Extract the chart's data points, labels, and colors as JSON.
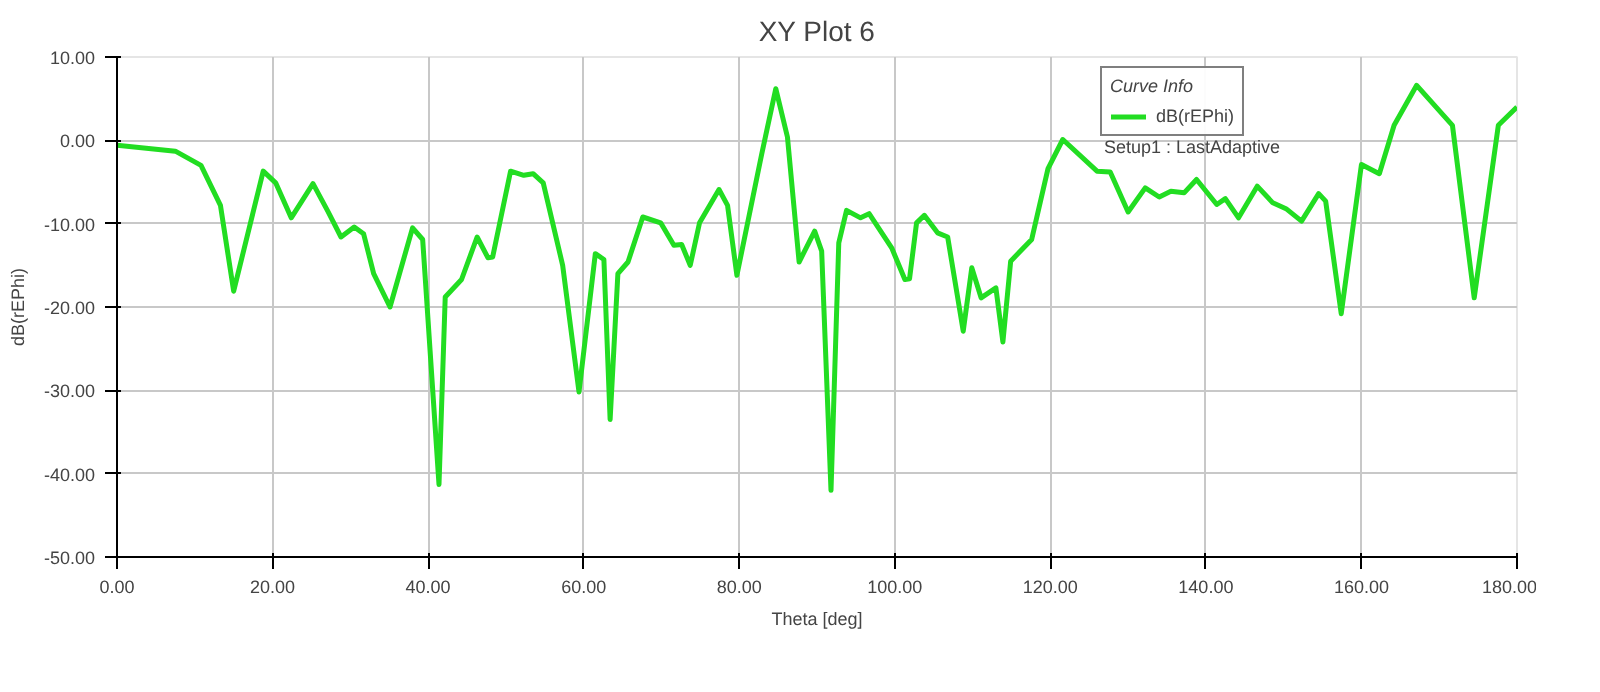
{
  "chart_data": {
    "type": "line",
    "title": "XY Plot 6",
    "xlabel": "Theta [deg]",
    "ylabel": "dB(rEPhi)",
    "legend_title": "Curve Info",
    "annotations": [
      "Setup1 : LastAdaptive"
    ],
    "x": [
      0,
      7.5,
      10.8,
      13.3,
      15.0,
      18.8,
      20.4,
      22.4,
      25.2,
      27.1,
      28.8,
      30.5,
      31.7,
      33.0,
      35.1,
      38.0,
      39.3,
      41.4,
      42.2,
      44.3,
      46.3,
      47.7,
      48.3,
      50.6,
      52.3,
      53.5,
      54.8,
      57.3,
      59.4,
      61.5,
      62.6,
      63.4,
      64.4,
      65.7,
      67.6,
      69.9,
      71.6,
      72.6,
      73.7,
      74.9,
      77.4,
      78.5,
      79.7,
      82.9,
      84.7,
      86.2,
      87.7,
      89.7,
      90.6,
      91.8,
      92.8,
      93.8,
      95.6,
      96.7,
      99.6,
      101.3,
      101.9,
      102.8,
      103.8,
      105.5,
      106.8,
      108.8,
      109.9,
      111.1,
      113.0,
      113.9,
      114.9,
      117.6,
      119.7,
      121.6,
      126.0,
      127.7,
      130.0,
      132.2,
      134.0,
      135.5,
      137.2,
      138.8,
      141.4,
      142.5,
      144.2,
      146.6,
      148.6,
      150.3,
      152.3,
      154.5,
      155.4,
      157.4,
      160.0,
      162.3,
      164.2,
      167.1,
      171.7,
      174.5,
      177.6,
      180
    ],
    "series": [
      {
        "name": "dB(rEPhi)",
        "color": "#22dd22",
        "values": [
          -0.6,
          -1.3,
          -3.0,
          -7.8,
          -18.1,
          -3.7,
          -5.1,
          -9.3,
          -5.2,
          -8.5,
          -11.6,
          -10.4,
          -11.2,
          -16.0,
          -20.0,
          -10.5,
          -11.9,
          -41.3,
          -18.8,
          -16.7,
          -11.6,
          -14.1,
          -14.0,
          -3.7,
          -4.2,
          -4.0,
          -5.1,
          -15.0,
          -30.2,
          -13.6,
          -14.3,
          -33.5,
          -16.0,
          -14.6,
          -9.2,
          -9.9,
          -12.6,
          -12.5,
          -15.0,
          -9.9,
          -5.9,
          -7.8,
          -16.2,
          -1.6,
          6.2,
          0.4,
          -14.6,
          -10.9,
          -13.3,
          -42.0,
          -12.3,
          -8.4,
          -9.3,
          -8.8,
          -12.9,
          -16.7,
          -16.6,
          -9.9,
          -9.0,
          -11.1,
          -11.6,
          -22.9,
          -15.3,
          -18.9,
          -17.7,
          -24.2,
          -14.5,
          -11.9,
          -3.4,
          0.1,
          -3.7,
          -3.8,
          -8.6,
          -5.7,
          -6.8,
          -6.1,
          -6.3,
          -4.7,
          -7.7,
          -7.0,
          -9.3,
          -5.5,
          -7.5,
          -8.2,
          -9.7,
          -6.4,
          -7.3,
          -20.8,
          -2.9,
          -4.0,
          1.8,
          6.6,
          1.8,
          -18.9,
          1.8,
          4.0
        ]
      }
    ],
    "xlim": [
      0,
      180
    ],
    "ylim": [
      -50,
      10
    ],
    "xticks": [
      {
        "value": 0,
        "label": "0.00"
      },
      {
        "value": 20,
        "label": "20.00"
      },
      {
        "value": 40,
        "label": "40.00"
      },
      {
        "value": 60,
        "label": "60.00"
      },
      {
        "value": 80,
        "label": "80.00"
      },
      {
        "value": 100,
        "label": "100.00"
      },
      {
        "value": 120,
        "label": "120.00"
      },
      {
        "value": 140,
        "label": "140.00"
      },
      {
        "value": 160,
        "label": "160.00"
      },
      {
        "value": 180,
        "label": "180.00"
      }
    ],
    "yticks": [
      {
        "value": 10,
        "label": "10.00"
      },
      {
        "value": 0,
        "label": "0.00"
      },
      {
        "value": -10,
        "label": "-10.00"
      },
      {
        "value": -20,
        "label": "-20.00"
      },
      {
        "value": -30,
        "label": "-30.00"
      },
      {
        "value": -40,
        "label": "-40.00"
      },
      {
        "value": -50,
        "label": "-50.00"
      }
    ],
    "grid": true,
    "legend": "top right",
    "line_style": "solid"
  }
}
